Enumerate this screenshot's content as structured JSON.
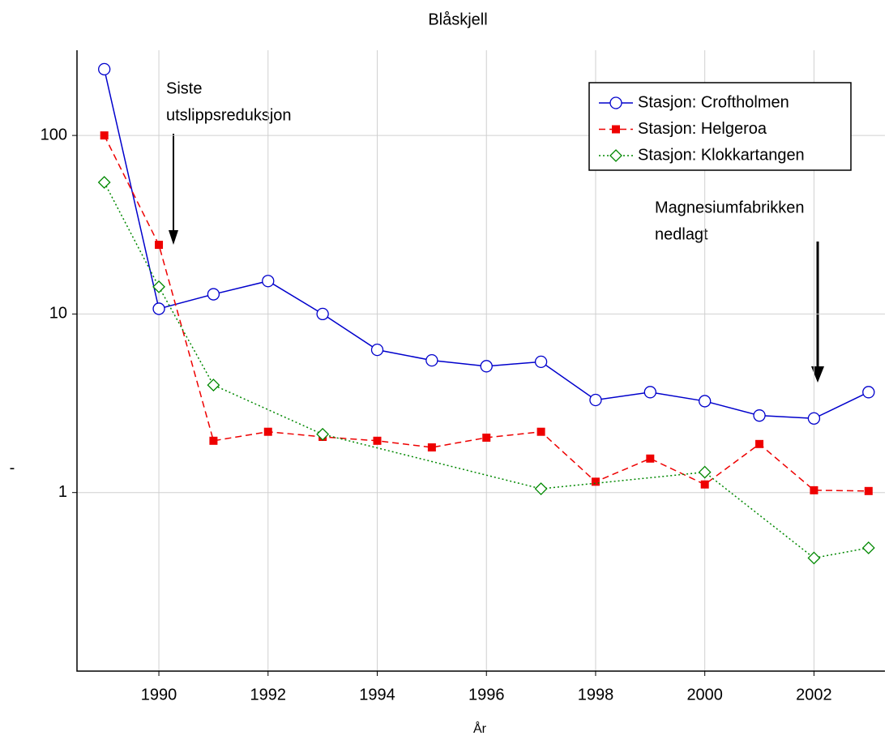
{
  "chart_data": {
    "type": "line",
    "title": "Blåskjell",
    "xlabel": "År",
    "ylabel": "-",
    "log_y": true,
    "grid": true,
    "legend": "upper right",
    "xlim": [
      1988.5,
      2003.3
    ],
    "xticks": [
      1990,
      1992,
      1994,
      1996,
      1998,
      2000,
      2002
    ],
    "ylim": [
      0.1,
      300
    ],
    "yticks": [
      1,
      10,
      100
    ],
    "series": [
      {
        "name": "Stasjon: Croftholmen",
        "color": "#0000cc",
        "linestyle": "solid",
        "marker": "circle",
        "x": [
          1989,
          1990,
          1991,
          1992,
          1993,
          1994,
          1995,
          1996,
          1997,
          1998,
          1999,
          2000,
          2001,
          2002,
          2003
        ],
        "values": [
          235,
          10.7,
          12.9,
          15.3,
          10.0,
          6.3,
          5.5,
          5.1,
          5.4,
          3.3,
          3.65,
          3.25,
          2.7,
          2.6,
          3.65
        ]
      },
      {
        "name": "Stasjon: Helgeroa",
        "color": "#ee0000",
        "linestyle": "dashed",
        "marker": "square",
        "x": [
          1989,
          1990,
          1991,
          1992,
          1993,
          1994,
          1995,
          1996,
          1997,
          1998,
          1999,
          2000,
          2001,
          2002,
          2003
        ],
        "values": [
          100,
          24.4,
          1.95,
          2.19,
          2.05,
          1.95,
          1.79,
          2.03,
          2.19,
          1.15,
          1.55,
          1.11,
          1.87,
          1.03,
          1.02
        ]
      },
      {
        "name": "Stasjon: Klokkartangen",
        "color": "#008800",
        "linestyle": "dotted",
        "marker": "diamond",
        "x": [
          1989,
          1990,
          1991,
          1993,
          1997,
          2000,
          2002,
          2003
        ],
        "values": [
          54.6,
          14.2,
          4.0,
          2.12,
          1.05,
          1.3,
          0.43,
          0.49
        ]
      }
    ],
    "annotations": [
      {
        "lines": [
          "Siste",
          "utslippsreduksjon"
        ]
      },
      {
        "lines": [
          "Magnesiumfabrikken",
          "nedlagt"
        ]
      }
    ]
  }
}
